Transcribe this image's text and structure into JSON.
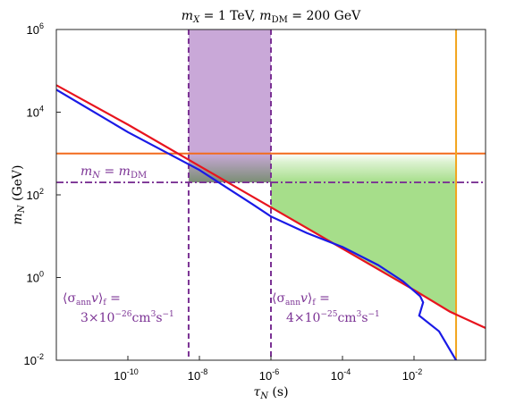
{
  "chart_data": {
    "type": "line",
    "title": "m_X = 1 TeV, m_DM = 200 GeV",
    "xlabel": "τ_N (s)",
    "ylabel": "m_N (GeV)",
    "xscale": "log",
    "yscale": "log",
    "xlim": [
      1e-12,
      1
    ],
    "ylim": [
      0.01,
      1000000
    ],
    "x_ticks": [
      {
        "label": "10",
        "exp": "-10",
        "value": 1e-10
      },
      {
        "label": "10",
        "exp": "-8",
        "value": 1e-08
      },
      {
        "label": "10",
        "exp": "-6",
        "value": 1e-06
      },
      {
        "label": "10",
        "exp": "-4",
        "value": 0.0001
      },
      {
        "label": "10",
        "exp": "-2",
        "value": 0.01
      }
    ],
    "y_ticks": [
      {
        "label": "10",
        "exp": "-2",
        "value": 0.01
      },
      {
        "label": "10",
        "exp": "0",
        "value": 1
      },
      {
        "label": "10",
        "exp": "2",
        "value": 100
      },
      {
        "label": "10",
        "exp": "4",
        "value": 10000
      },
      {
        "label": "10",
        "exp": "6",
        "value": 1000000
      }
    ],
    "series": [
      {
        "color": "#E8141E",
        "points": [
          [
            1e-12,
            45000
          ],
          [
            1e-10,
            5000
          ],
          [
            1e-08,
            500
          ],
          [
            1e-06,
            50
          ],
          [
            0.0001,
            5
          ],
          [
            0.01,
            0.5
          ],
          [
            0.1,
            0.15
          ],
          [
            1,
            0.06
          ]
        ]
      },
      {
        "color": "#1A1AE6",
        "points": [
          [
            1e-12,
            35000
          ],
          [
            1e-10,
            3300
          ],
          [
            1e-08,
            400
          ],
          [
            3e-07,
            60
          ],
          [
            1e-06,
            30
          ],
          [
            1e-05,
            12
          ],
          [
            0.0001,
            5.5
          ],
          [
            0.001,
            2
          ],
          [
            0.005,
            0.8
          ],
          [
            0.015,
            0.35
          ],
          [
            0.018,
            0.25
          ],
          [
            0.014,
            0.12
          ],
          [
            0.05,
            0.05
          ],
          [
            0.15,
            0.01
          ]
        ]
      }
    ],
    "horizontal_lines": [
      {
        "y": 1000,
        "color": "#F26B1D",
        "style": "solid"
      },
      {
        "y": 200,
        "color": "#7B3294",
        "style": "dashdot",
        "label": "m_N = m_DM"
      }
    ],
    "vertical_lines": [
      {
        "x": 5e-09,
        "color": "#7B3294",
        "style": "dashed"
      },
      {
        "x": 1e-06,
        "color": "#7B3294",
        "style": "dashed"
      },
      {
        "x": 0.15,
        "color": "#F2A51D",
        "style": "solid"
      }
    ],
    "shaded_regions": [
      {
        "name": "purple-band",
        "x": [
          5e-09,
          1e-06
        ],
        "y": [
          200,
          1000000
        ],
        "color": "#C9A8D8"
      },
      {
        "name": "green-region",
        "x_min": 1e-06,
        "x_max": 0.15,
        "y_max": 1000,
        "below_red": true,
        "color": "#A6DE8A"
      }
    ],
    "annotations": [
      {
        "id": "mn_eq_mdm",
        "text": "m_N = m_DM"
      },
      {
        "id": "sigma_left_l1",
        "text": "⟨σ_ann v⟩_f ="
      },
      {
        "id": "sigma_left_l2",
        "text": "3×10^-26 cm^3 s^-1"
      },
      {
        "id": "sigma_right_l1",
        "text": "⟨σ_ann v⟩_f ="
      },
      {
        "id": "sigma_right_l2",
        "text": "4×10^-25 cm^3 s^-1"
      }
    ],
    "grid": false,
    "legend": "none"
  }
}
